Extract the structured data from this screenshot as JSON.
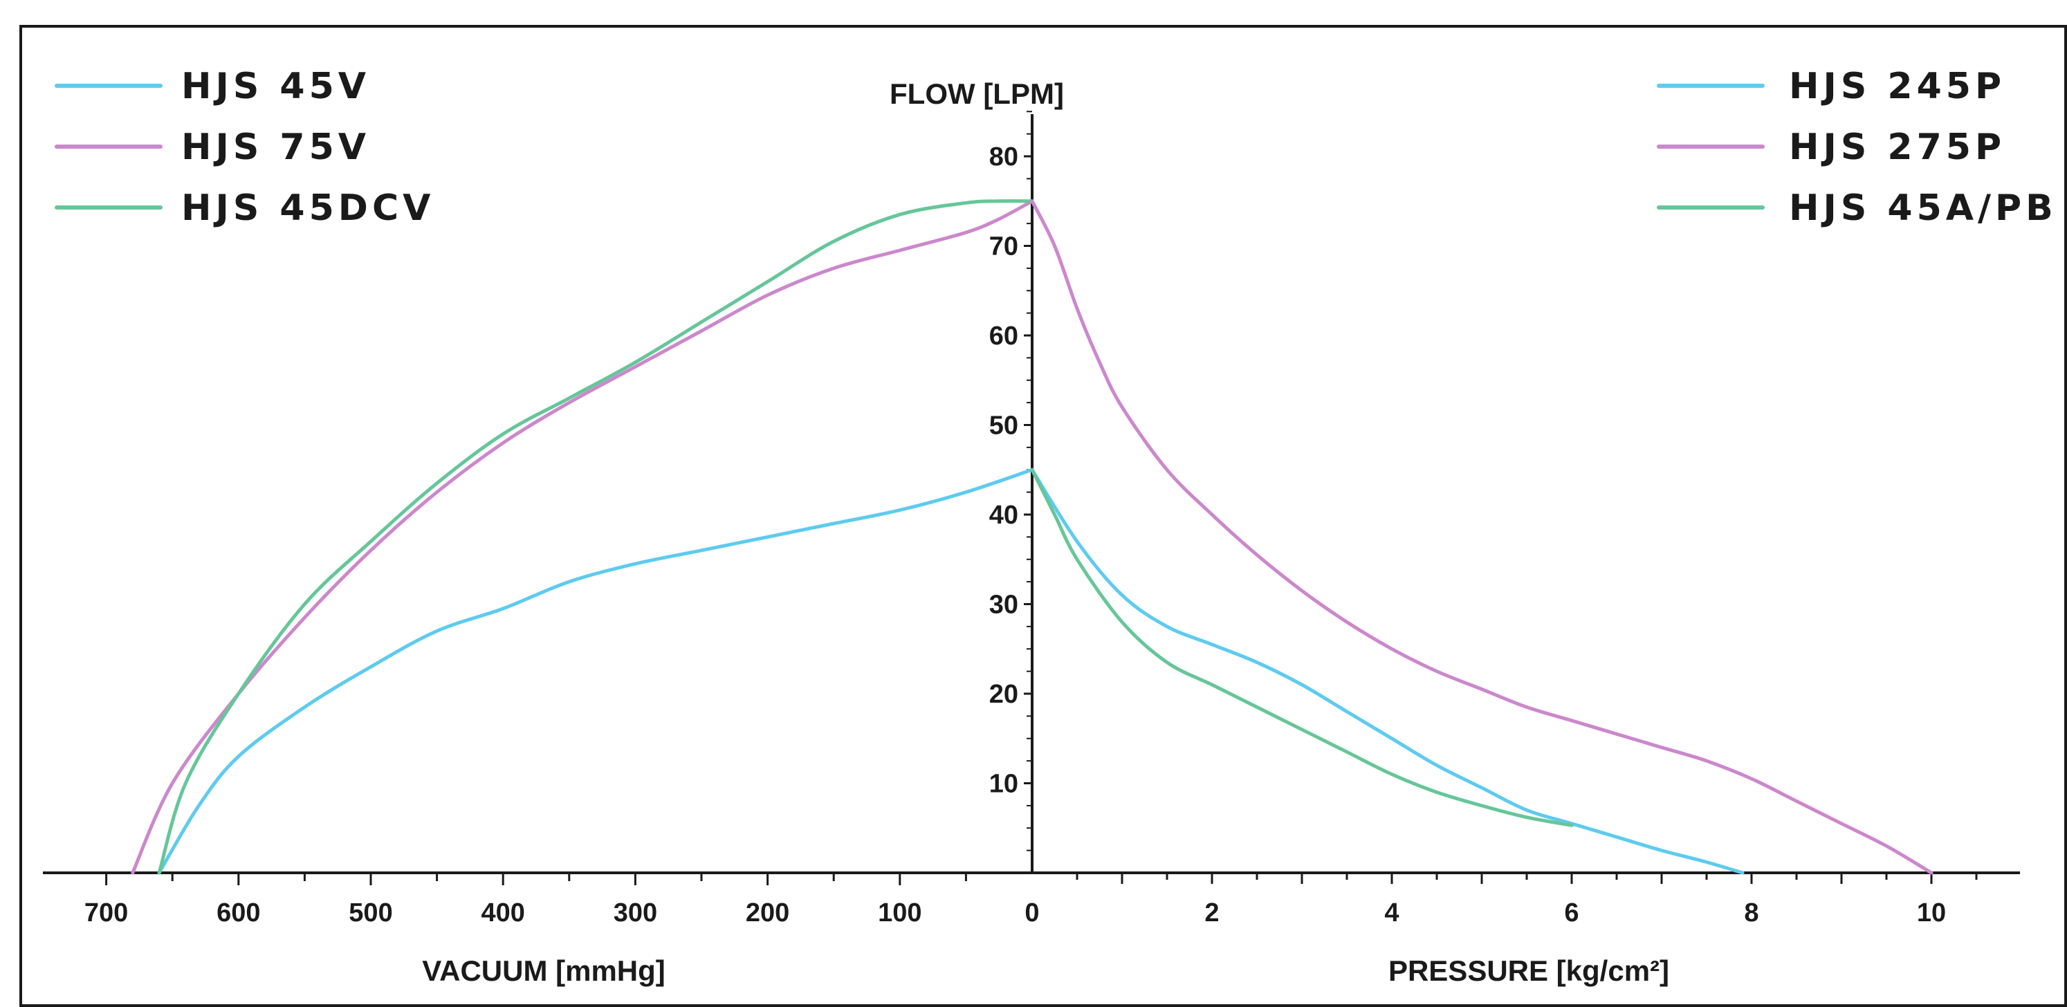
{
  "chart_data": [
    {
      "type": "line",
      "panel": "left",
      "xlabel": "VACUUM [mmHg]",
      "ylabel": "FLOW [LPM]",
      "x_reversed": true,
      "xlim": [
        0,
        750
      ],
      "ylim": [
        0,
        85
      ],
      "x_ticks": [
        0,
        100,
        200,
        300,
        400,
        500,
        600,
        700
      ],
      "y_ticks": [
        10,
        20,
        30,
        40,
        50,
        60,
        70,
        80
      ],
      "legend_position": "top-left",
      "series": [
        {
          "name": "HJS 45V",
          "color": "#5ecbef",
          "x": [
            0,
            50,
            100,
            150,
            200,
            250,
            300,
            350,
            400,
            450,
            500,
            550,
            600,
            630,
            660
          ],
          "y": [
            45,
            42.5,
            40.5,
            39,
            37.5,
            36,
            34.5,
            32.5,
            29.5,
            27,
            23,
            18.5,
            13,
            7.5,
            0
          ]
        },
        {
          "name": "HJS 75V",
          "color": "#cc88cc",
          "x": [
            0,
            25,
            50,
            100,
            150,
            200,
            250,
            300,
            350,
            400,
            450,
            500,
            550,
            600,
            650,
            680
          ],
          "y": [
            75,
            73,
            71.5,
            69.5,
            67.5,
            64.5,
            60.5,
            56.5,
            52.5,
            48,
            42.5,
            36,
            28.5,
            20,
            10,
            0
          ]
        },
        {
          "name": "HJS 45DCV",
          "color": "#66c699",
          "x": [
            0,
            25,
            50,
            100,
            150,
            200,
            250,
            300,
            350,
            400,
            450,
            500,
            550,
            600,
            640,
            660
          ],
          "y": [
            75,
            75,
            74.8,
            73.5,
            70.5,
            66,
            61.5,
            57,
            53,
            49,
            43.5,
            37,
            30,
            20,
            10,
            0
          ]
        }
      ]
    },
    {
      "type": "line",
      "panel": "right",
      "xlabel": "PRESSURE   [kg/cm²]",
      "ylabel": "",
      "xlim": [
        0,
        11
      ],
      "ylim": [
        0,
        85
      ],
      "x_ticks": [
        0,
        2,
        4,
        6,
        8,
        10
      ],
      "legend_position": "top-right",
      "series": [
        {
          "name": "HJS 245P",
          "color": "#5ecbef",
          "x": [
            0,
            0.5,
            1,
            1.5,
            2,
            2.5,
            3,
            3.5,
            4,
            4.5,
            5,
            5.5,
            6,
            6.5,
            7,
            7.5,
            7.9
          ],
          "y": [
            45,
            37,
            31,
            27.5,
            25.5,
            23.5,
            21,
            18,
            15,
            12,
            9.5,
            7,
            5.5,
            4,
            2.5,
            1.2,
            0
          ]
        },
        {
          "name": "HJS 275P",
          "color": "#cc88cc",
          "x": [
            0,
            0.25,
            0.5,
            0.75,
            1,
            1.5,
            2,
            2.5,
            3,
            3.5,
            4,
            4.5,
            5,
            5.5,
            6,
            6.5,
            7,
            7.5,
            8,
            8.5,
            9,
            9.5,
            10
          ],
          "y": [
            75,
            70,
            63,
            57,
            52,
            45,
            40,
            35.5,
            31.5,
            28,
            25,
            22.5,
            20.5,
            18.5,
            17,
            15.5,
            14,
            12.5,
            10.5,
            8,
            5.5,
            3,
            0
          ]
        },
        {
          "name": "HJS 45A/PB",
          "color": "#66c699",
          "x": [
            0,
            0.25,
            0.5,
            1,
            1.5,
            2,
            2.5,
            3,
            3.5,
            4,
            4.5,
            5,
            5.5,
            6
          ],
          "y": [
            45,
            40,
            35,
            28,
            23.5,
            21,
            18.5,
            16,
            13.5,
            11,
            9,
            7.5,
            6.2,
            5.3
          ]
        }
      ]
    }
  ]
}
